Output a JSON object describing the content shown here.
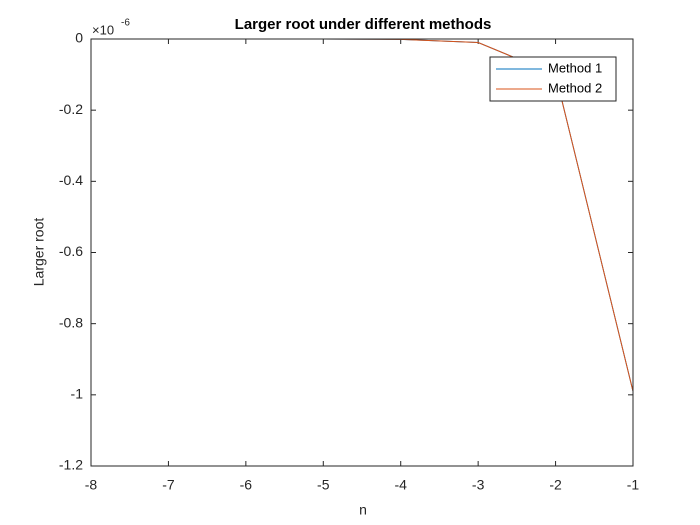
{
  "chart_data": {
    "type": "line",
    "title": "Larger root under different methods",
    "xlabel": "n",
    "ylabel": "Larger root",
    "y_multiplier": "×10",
    "y_multiplier_exponent": "-6",
    "x": [
      -8,
      -7,
      -6,
      -5,
      -4,
      -3,
      -2,
      -1
    ],
    "series": [
      {
        "name": "Method 1",
        "color": "#0072bd",
        "values": [
          -1e-07,
          -1e-06,
          -1e-05,
          -0.0001,
          -0.001,
          -0.01,
          -0.1,
          -0.99
        ]
      },
      {
        "name": "Method 2",
        "color": "#d95319",
        "values": [
          -1e-07,
          -1e-06,
          -1e-05,
          -0.0001,
          -0.001,
          -0.01,
          -0.1,
          -0.99
        ]
      }
    ],
    "xlim": [
      -8,
      -1
    ],
    "xticks": [
      -8,
      -7,
      -6,
      -5,
      -4,
      -3,
      -2,
      -1
    ],
    "ylim": [
      -1.2,
      0
    ],
    "yticks": [
      -1.2,
      -1,
      -0.8,
      -0.6,
      -0.4,
      -0.2,
      0
    ],
    "legend": "upper right"
  }
}
